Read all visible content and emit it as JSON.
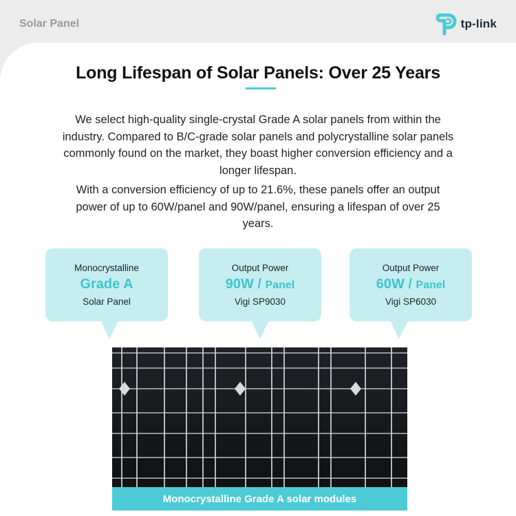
{
  "header": {
    "category": "Solar Panel",
    "brand": "tp-link",
    "brand_icon": "tp-link-logo-icon",
    "accent_color": "#4acbd6"
  },
  "main": {
    "title": "Long Lifespan of Solar Panels: Over 25 Years",
    "paragraphs": [
      "We select high-quality single-crystal Grade A solar panels from within the industry. Compared to B/C-grade solar panels and polycrystalline solar panels commonly found on the market, they boast higher conversion efficiency and a longer lifespan.",
      "With a conversion efficiency of up to 21.6%, these panels offer an output power of up to 60W/panel and 90W/panel, ensuring a lifespan of over 25 years."
    ]
  },
  "callouts": [
    {
      "label": "Monocrystalline",
      "value": "Grade A",
      "unit": "",
      "sub": "Solar Panel"
    },
    {
      "label": "Output Power",
      "value": "90W / ",
      "unit": "Panel",
      "sub": "Vigi SP9030"
    },
    {
      "label": "Output Power",
      "value": "60W / ",
      "unit": "Panel",
      "sub": "Vigi SP6030"
    }
  ],
  "panel": {
    "caption": "Monocrystalline Grade A solar modules",
    "image": "solar-panel-photo"
  }
}
